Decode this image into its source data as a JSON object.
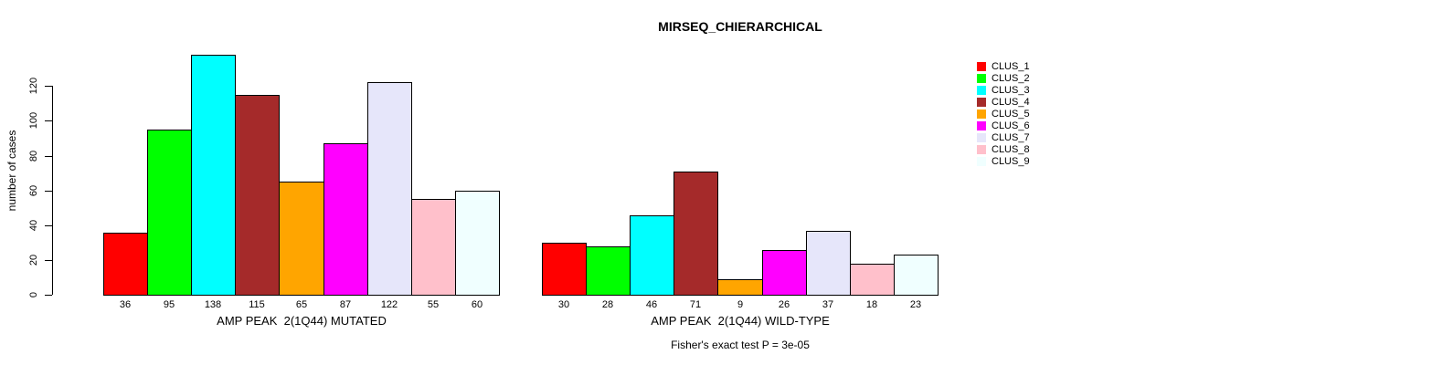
{
  "chart_data": {
    "type": "bar",
    "title": "MIRSEQ_CHIERARCHICAL",
    "ylabel": "number of cases",
    "ylim": [
      0,
      120
    ],
    "yticks": [
      0,
      20,
      40,
      60,
      80,
      100,
      120
    ],
    "grid": false,
    "legend_position": "top-right",
    "bar_border_color": "#000000",
    "series_labels": [
      "CLUS_1",
      "CLUS_2",
      "CLUS_3",
      "CLUS_4",
      "CLUS_5",
      "CLUS_6",
      "CLUS_7",
      "CLUS_8",
      "CLUS_9"
    ],
    "series_colors": [
      "#FF0000",
      "#00FF00",
      "#00FFFF",
      "#A52A2A",
      "#FFA500",
      "#FF00FF",
      "#E6E6FA",
      "#FFC0CB",
      "#F0FFFF"
    ],
    "groups": [
      {
        "label": "AMP PEAK  2(1Q44) MUTATED",
        "values": [
          36,
          95,
          138,
          115,
          65,
          87,
          122,
          55,
          60
        ]
      },
      {
        "label": "AMP PEAK  2(1Q44) WILD-TYPE",
        "values": [
          30,
          28,
          46,
          71,
          9,
          26,
          37,
          18,
          23
        ]
      }
    ],
    "annotation": "Fisher's exact test P = 3e-05"
  },
  "legend": {
    "entries": [
      {
        "label": "CLUS_1",
        "color": "#FF0000"
      },
      {
        "label": "CLUS_2",
        "color": "#00FF00"
      },
      {
        "label": "CLUS_3",
        "color": "#00FFFF"
      },
      {
        "label": "CLUS_4",
        "color": "#A52A2A"
      },
      {
        "label": "CLUS_5",
        "color": "#FFA500"
      },
      {
        "label": "CLUS_6",
        "color": "#FF00FF"
      },
      {
        "label": "CLUS_7",
        "color": "#E6E6FA"
      },
      {
        "label": "CLUS_8",
        "color": "#FFC0CB"
      },
      {
        "label": "CLUS_9",
        "color": "#F0FFFF"
      }
    ]
  }
}
